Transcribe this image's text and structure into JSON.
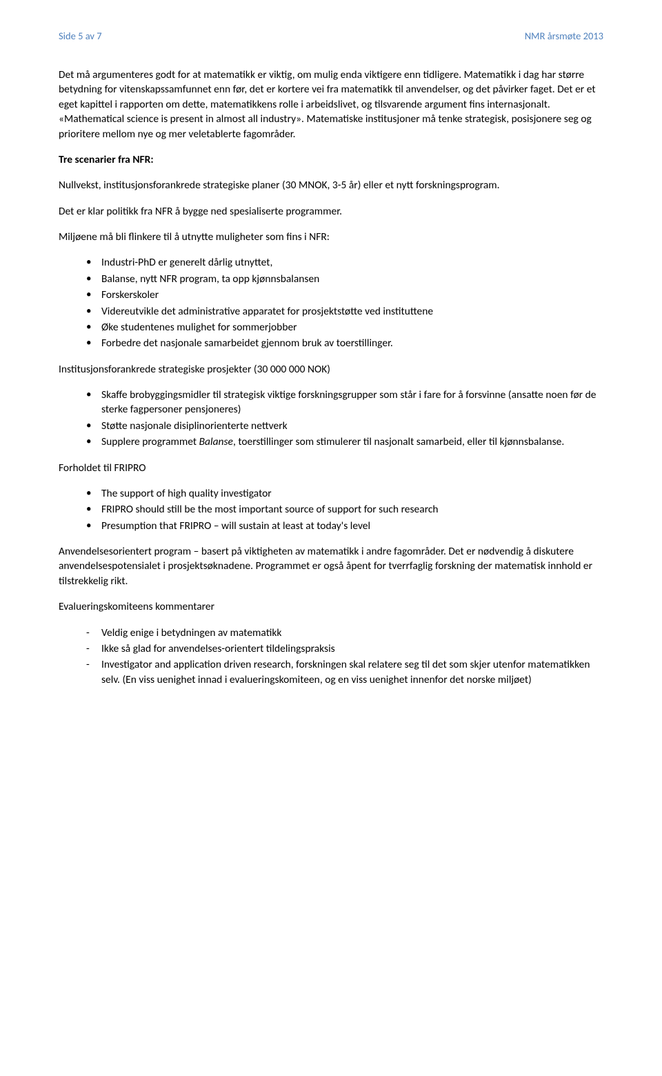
{
  "header": {
    "left": "Side 5 av 7",
    "right": "NMR årsmøte 2013"
  },
  "para1": "Det må argumenteres godt for at matematikk er viktig, om mulig enda viktigere enn tidligere. Matematikk i dag har større betydning for vitenskapssamfunnet enn før, det er kortere vei fra matematikk til anvendelser, og det påvirker faget. Det er et eget kapittel i rapporten om dette, matematikkens rolle i arbeidslivet, og tilsvarende argument fins internasjonalt. «Mathematical science is present in almost all industry». Matematiske institusjoner må tenke strategisk, posisjonere seg og prioritere mellom nye og mer veletablerte fagområder.",
  "heading1": "Tre scenarier fra NFR:",
  "para2": "Nullvekst, institusjonsforankrede strategiske planer (30 MNOK, 3-5 år) eller et nytt forskningsprogram.",
  "para3": "Det er klar politikk fra NFR å bygge ned spesialiserte programmer.",
  "para4": "Miljøene må bli flinkere til å utnytte muligheter som fins i NFR:",
  "list1": [
    "Industri-PhD er generelt dårlig utnyttet,",
    "Balanse, nytt NFR program, ta opp kjønnsbalansen",
    "Forskerskoler",
    "Videreutvikle det administrative apparatet for prosjektstøtte ved instituttene",
    "Øke studentenes mulighet for sommerjobber",
    "Forbedre det nasjonale samarbeidet gjennom bruk av toerstillinger."
  ],
  "para5": "Institusjonsforankrede strategiske prosjekter (30 000 000 NOK)",
  "list2": {
    "items": [
      {
        "pre": "Skaffe brobyggingsmidler til strategisk viktige forskningsgrupper som står i fare for å forsvinne (ansatte noen før de sterke fagpersoner pensjoneres)"
      },
      {
        "pre": "Støtte nasjonale disiplinorienterte nettverk"
      },
      {
        "pre": "Supplere programmet ",
        "italic": "Balanse",
        "post": ", toerstillinger som stimulerer til nasjonalt samarbeid, eller til kjønnsbalanse."
      }
    ]
  },
  "para6": "Forholdet til FRIPRO",
  "list3": [
    "The support of high quality investigator",
    "FRIPRO should still be the most important source of support for such research",
    "Presumption that FRIPRO – will sustain at least at today's level"
  ],
  "para7": "Anvendelsesorientert program – basert på viktigheten av matematikk i andre fagområder. Det er nødvendig å diskutere anvendelsespotensialet i prosjektsøknadene. Programmet er også åpent for tverrfaglig forskning der matematisk innhold er tilstrekkelig rikt.",
  "para8": "Evalueringskomiteens kommentarer",
  "list4": [
    "Veldig enige i betydningen av matematikk",
    "Ikke så glad for anvendelses-orientert tildelingspraksis",
    "Investigator and application driven research, forskningen skal relatere seg til det som skjer utenfor matematikken selv. (En viss uenighet innad i evalueringskomiteen, og en viss uenighet innenfor det norske miljøet)"
  ]
}
